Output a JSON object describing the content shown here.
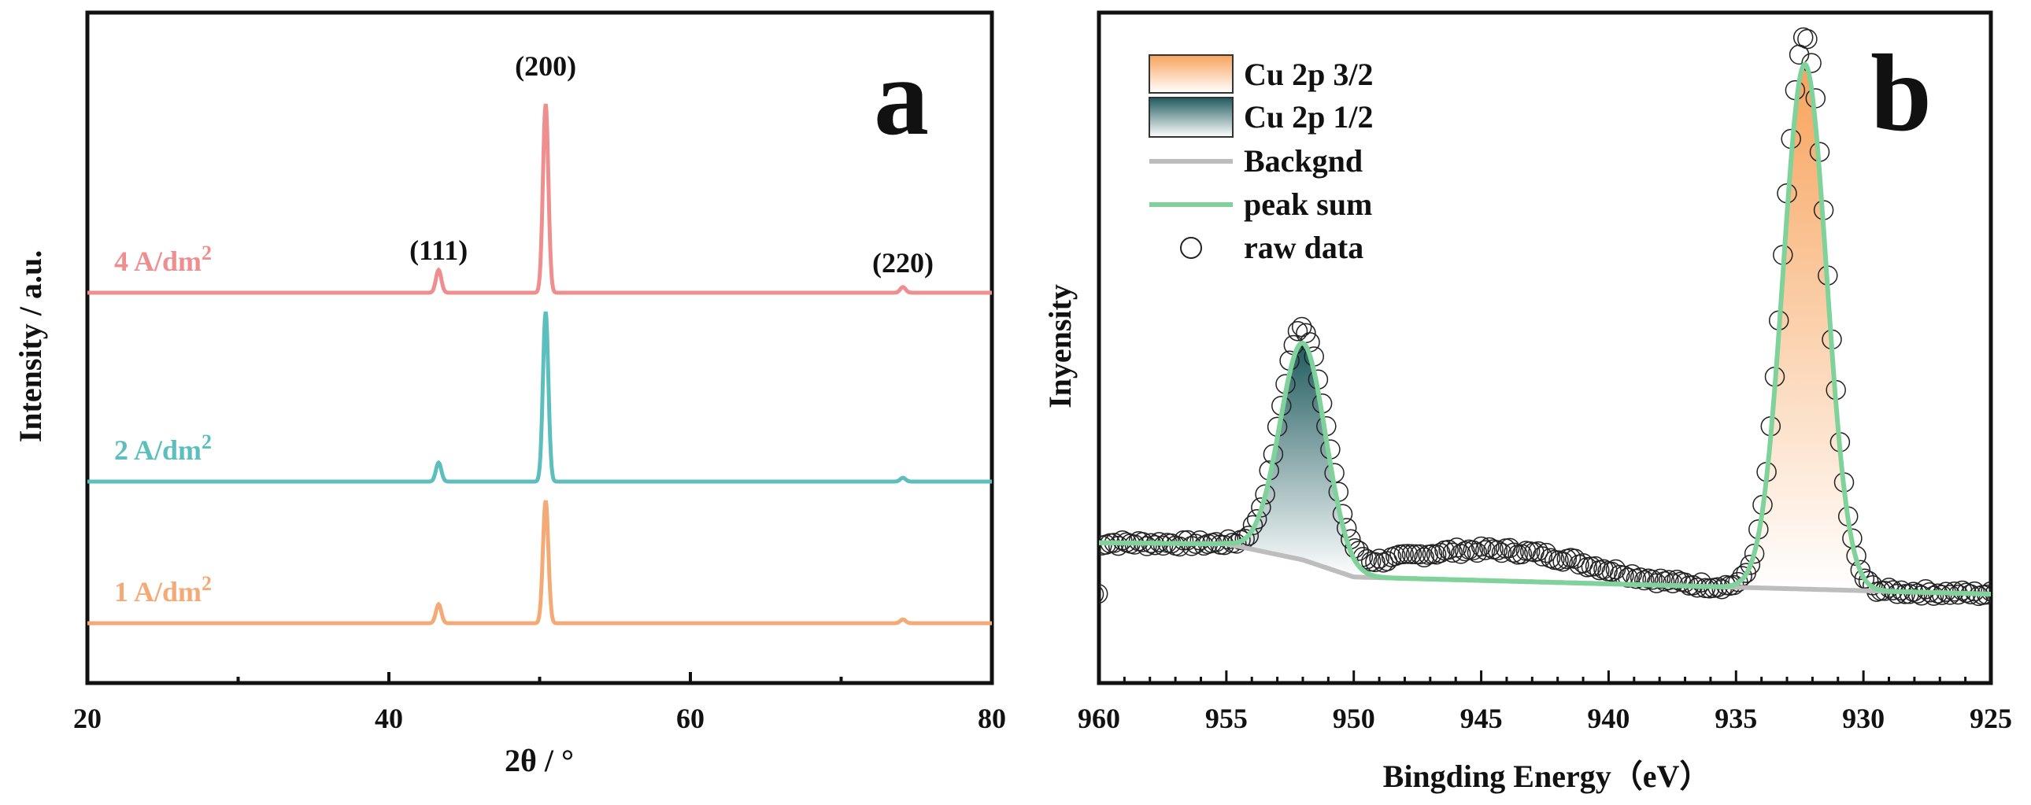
{
  "chart_data": [
    {
      "type": "line",
      "panel_letter": "a",
      "xlabel": "2θ / °",
      "ylabel": "Intensity / a.u.",
      "xlim": [
        20,
        80
      ],
      "xticks": [
        "20",
        "40",
        "60",
        "80"
      ],
      "y_ticks_shown": false,
      "series": [
        {
          "name": "4 A/dm²",
          "label_base": "4 A/dm",
          "label_sup": "2",
          "color": "#ef8e8e",
          "offset": 2,
          "peaks": [
            {
              "x": 43.3,
              "h": 0.12
            },
            {
              "x": 50.4,
              "h": 1.0
            },
            {
              "x": 74.1,
              "h": 0.03
            }
          ]
        },
        {
          "name": "2 A/dm²",
          "label_base": "2 A/dm",
          "label_sup": "2",
          "color": "#5cbfbd",
          "offset": 1,
          "peaks": [
            {
              "x": 43.3,
              "h": 0.1
            },
            {
              "x": 50.4,
              "h": 0.9
            },
            {
              "x": 74.1,
              "h": 0.02
            }
          ]
        },
        {
          "name": "1 A/dm²",
          "label_base": "1 A/dm",
          "label_sup": "2",
          "color": "#f4aa76",
          "offset": 0,
          "peaks": [
            {
              "x": 43.3,
              "h": 0.1
            },
            {
              "x": 50.4,
              "h": 0.65
            },
            {
              "x": 74.1,
              "h": 0.02
            }
          ]
        }
      ],
      "peak_annotations": [
        {
          "text": "(111)",
          "x": 43.3
        },
        {
          "text": "(200)",
          "x": 50.4
        },
        {
          "text": "(220)",
          "x": 74.1
        }
      ]
    },
    {
      "type": "line",
      "panel_letter": "b",
      "xlabel": "Bingding Energy（eV）",
      "ylabel": "Inyensity",
      "xlim": [
        960,
        925
      ],
      "x_reversed": true,
      "xticks": [
        "960",
        "955",
        "950",
        "945",
        "940",
        "935",
        "930",
        "925"
      ],
      "y_ticks_shown": false,
      "legend": {
        "position": "top-left",
        "entries": [
          {
            "label": "Cu 2p 3/2",
            "kind": "fill",
            "color": "#f7a35c"
          },
          {
            "label": "Cu 2p 1/2",
            "kind": "fill",
            "color": "#1f5a5e"
          },
          {
            "label": "Backgnd",
            "kind": "line",
            "color": "#bdbdbd"
          },
          {
            "label": "peak sum",
            "kind": "line",
            "color": "#7fd39a"
          },
          {
            "label": "raw data",
            "kind": "marker",
            "color": "#222222"
          }
        ]
      },
      "peaks": [
        {
          "name": "Cu 2p 3/2",
          "center": 932.3,
          "height": 4.6,
          "sigma": 0.85
        },
        {
          "name": "Cu 2p 1/2",
          "center": 952.0,
          "height": 1.9,
          "sigma": 0.9
        }
      ],
      "background": {
        "start": 0.45,
        "end": 0.0,
        "step_points": [
          [
            960,
            0.45
          ],
          [
            955,
            0.44
          ],
          [
            952,
            0.3
          ],
          [
            950,
            0.15
          ],
          [
            925,
            0.0
          ]
        ]
      }
    }
  ]
}
